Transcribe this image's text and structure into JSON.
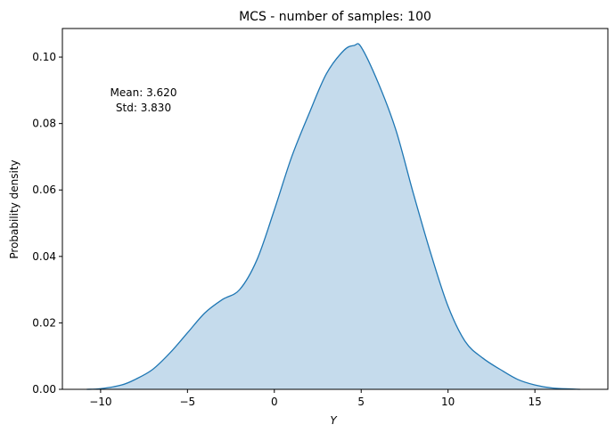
{
  "chart_data": {
    "type": "area",
    "title": "MCS - number of samples: 100",
    "xlabel": "Y",
    "ylabel": "Probability density",
    "xlim": [
      -12.2,
      19.2
    ],
    "ylim": [
      0,
      0.1086
    ],
    "xticks": [
      -10,
      -5,
      0,
      5,
      10,
      15
    ],
    "xtick_labels": [
      "−10",
      "−5",
      "0",
      "5",
      "10",
      "15"
    ],
    "yticks": [
      0,
      0.02,
      0.04,
      0.06,
      0.08,
      0.1
    ],
    "ytick_labels": [
      "0.00",
      "0.02",
      "0.04",
      "0.06",
      "0.08",
      "0.10"
    ],
    "grid": false,
    "annotation": {
      "mean": "Mean: 3.620",
      "std": "Std: 3.830"
    },
    "colors": {
      "line": "#1f77b4",
      "fill": "#c5dbec"
    },
    "x": [
      -10.8,
      -10,
      -8.8,
      -8,
      -7,
      -6,
      -5,
      -4,
      -3,
      -2,
      -1,
      0,
      1,
      2,
      3,
      4,
      4.6,
      5,
      6,
      7,
      8,
      9,
      10,
      11,
      12,
      13,
      14,
      15,
      16,
      17.6
    ],
    "y": [
      0,
      0.0002,
      0.0013,
      0.003,
      0.006,
      0.011,
      0.017,
      0.023,
      0.027,
      0.03,
      0.039,
      0.054,
      0.07,
      0.083,
      0.095,
      0.102,
      0.1035,
      0.103,
      0.092,
      0.078,
      0.059,
      0.041,
      0.025,
      0.0143,
      0.0094,
      0.006,
      0.003,
      0.0013,
      0.0004,
      0
    ]
  }
}
